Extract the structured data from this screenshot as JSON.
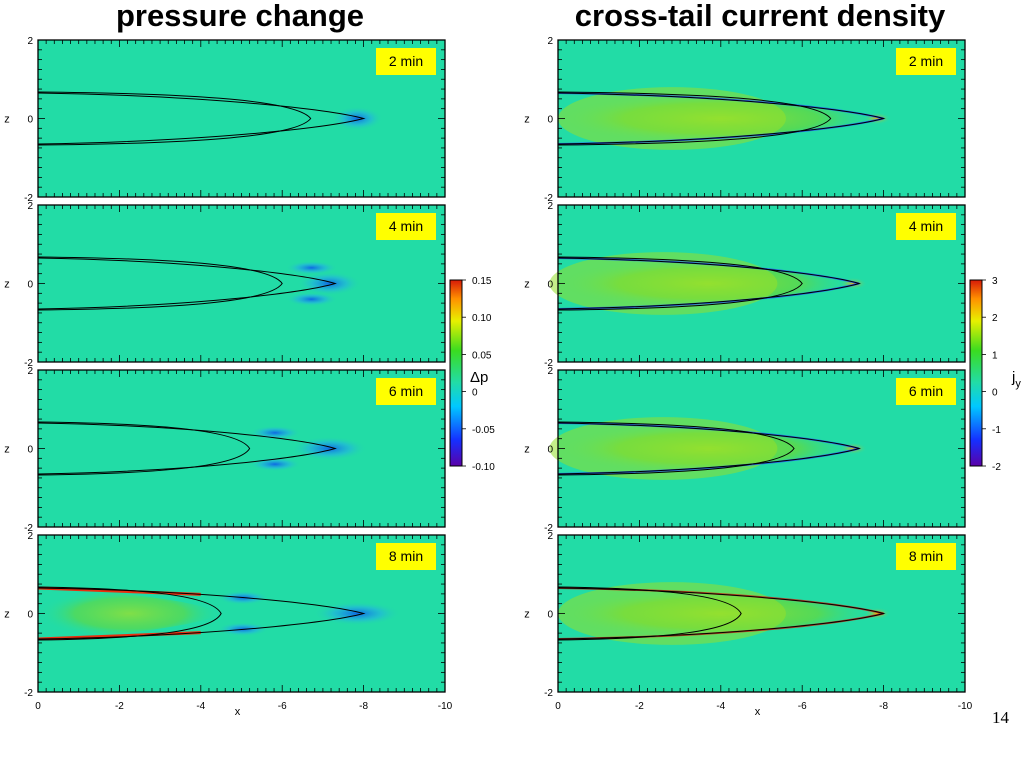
{
  "page_number": "14",
  "chart_data": [
    {
      "type": "heatmap",
      "title": "pressure change",
      "xlabel": "x",
      "ylabel": "z",
      "xlim": [
        0,
        -10
      ],
      "ylim": [
        -2,
        2
      ],
      "x_ticks": [
        "0",
        "-2",
        "-4",
        "-6",
        "-8",
        "-10"
      ],
      "y_ticks": [
        "2",
        "0",
        "-2"
      ],
      "panels": [
        "2 min",
        "4 min",
        "6 min",
        "8 min"
      ],
      "colorbar": {
        "label": "Δp",
        "range": [
          -0.1,
          0.15
        ],
        "ticks": [
          "0.15",
          "0.10",
          "0.05",
          "0",
          "-0.05",
          "-0.10"
        ]
      },
      "contour_tip_x": [
        -8.0,
        -7.3,
        -7.3,
        -8.0
      ],
      "contour_inner_tip_x": [
        -6.7,
        -6.0,
        -5.2,
        -4.5
      ],
      "contour_half_width": 0.65,
      "colors": {
        "background": "#22dca6",
        "annotation_box": "#ffff00"
      }
    },
    {
      "type": "heatmap",
      "title": "cross-tail current density",
      "xlabel": "x",
      "ylabel": "z",
      "xlim": [
        0,
        -10
      ],
      "ylim": [
        -2,
        2
      ],
      "x_ticks": [
        "0",
        "-2",
        "-4",
        "-6",
        "-8",
        "-10"
      ],
      "y_ticks": [
        "2",
        "0",
        "-2"
      ],
      "panels": [
        "2 min",
        "4 min",
        "6 min",
        "8 min"
      ],
      "colorbar": {
        "label": "j",
        "label_subscript": "y",
        "range": [
          -2,
          3
        ],
        "ticks": [
          "3",
          "2",
          "1",
          "0",
          "-1",
          "-2"
        ]
      },
      "contour_tip_x": [
        -8.0,
        -7.4,
        -7.4,
        -8.0
      ],
      "contour_inner_tip_x": [
        -6.7,
        -6.0,
        -5.8,
        -4.5
      ],
      "contour_half_width": 0.65,
      "colors": {
        "background": "#22dca6",
        "annotation_box": "#ffff00"
      }
    }
  ]
}
